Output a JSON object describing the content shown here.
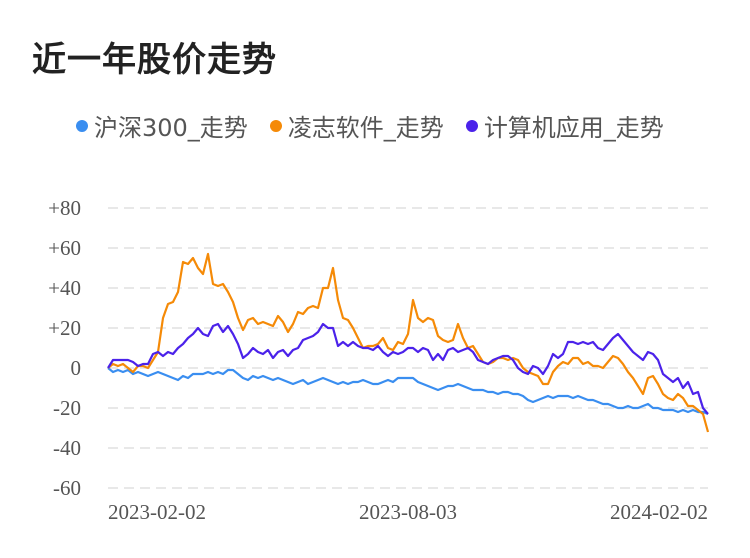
{
  "title": "近一年股价走势",
  "chart_data": {
    "type": "line",
    "title": "近一年股价走势",
    "x_ticks": [
      "2023-02-02",
      "2023-08-03",
      "2024-02-02"
    ],
    "y_ticks": [
      "+80",
      "+60",
      "+40",
      "+20",
      "0",
      "-20",
      "-40",
      "-60"
    ],
    "ylim": [
      -60,
      80
    ],
    "grid": true,
    "legend_position": "top",
    "series": [
      {
        "name": "沪深300_走势",
        "color": "#3a8ef0",
        "values": [
          0,
          -2,
          -1,
          -2,
          -1,
          -3,
          -2,
          -3,
          -4,
          -3,
          -2,
          -3,
          -4,
          -5,
          -6,
          -4,
          -5,
          -3,
          -3,
          -3,
          -2,
          -3,
          -2,
          -3,
          -1,
          -1,
          -3,
          -5,
          -6,
          -4,
          -5,
          -4,
          -5,
          -6,
          -5,
          -6,
          -7,
          -8,
          -7,
          -6,
          -8,
          -7,
          -6,
          -5,
          -6,
          -7,
          -8,
          -7,
          -8,
          -7,
          -7,
          -6,
          -7,
          -8,
          -8,
          -7,
          -6,
          -7,
          -5,
          -5,
          -5,
          -5,
          -7,
          -8,
          -9,
          -10,
          -11,
          -10,
          -9,
          -9,
          -8,
          -9,
          -10,
          -11,
          -11,
          -11,
          -12,
          -12,
          -13,
          -12,
          -12,
          -13,
          -13,
          -14,
          -16,
          -17,
          -16,
          -15,
          -14,
          -15,
          -14,
          -14,
          -14,
          -15,
          -14,
          -15,
          -16,
          -16,
          -17,
          -18,
          -18,
          -19,
          -20,
          -20,
          -19,
          -20,
          -20,
          -19,
          -18,
          -20,
          -20,
          -21,
          -21,
          -21,
          -22,
          -21,
          -22,
          -21,
          -22,
          -22,
          -23
        ]
      },
      {
        "name": "凌志软件_走势",
        "color": "#f58a07",
        "values": [
          0,
          2,
          1,
          2,
          0,
          -2,
          1,
          1,
          0,
          4,
          8,
          25,
          32,
          33,
          38,
          53,
          52,
          55,
          50,
          47,
          57,
          42,
          41,
          42,
          38,
          33,
          25,
          19,
          24,
          25,
          22,
          23,
          22,
          21,
          26,
          23,
          18,
          22,
          28,
          27,
          30,
          31,
          30,
          40,
          40,
          50,
          34,
          25,
          24,
          20,
          15,
          10,
          11,
          11,
          12,
          15,
          10,
          9,
          13,
          12,
          17,
          34,
          25,
          23,
          25,
          24,
          16,
          14,
          13,
          14,
          22,
          15,
          10,
          11,
          7,
          3,
          2,
          3,
          5,
          5,
          4,
          5,
          4,
          0,
          -2,
          -3,
          -4,
          -8,
          -8,
          -2,
          1,
          3,
          2,
          5,
          5,
          2,
          3,
          1,
          1,
          0,
          3,
          6,
          5,
          2,
          -2,
          -5,
          -9,
          -13,
          -5,
          -4,
          -8,
          -13,
          -15,
          -16,
          -13,
          -15,
          -19,
          -19,
          -21,
          -23,
          -32
        ]
      },
      {
        "name": "计算机应用_走势",
        "color": "#4b22ea",
        "values": [
          0,
          4,
          4,
          4,
          4,
          3,
          1,
          2,
          2,
          7,
          8,
          6,
          8,
          7,
          10,
          12,
          15,
          17,
          20,
          17,
          16,
          21,
          22,
          18,
          21,
          17,
          12,
          5,
          7,
          10,
          8,
          7,
          9,
          5,
          8,
          9,
          6,
          9,
          10,
          14,
          15,
          16,
          18,
          22,
          20,
          20,
          11,
          13,
          11,
          13,
          11,
          10,
          10,
          9,
          11,
          8,
          6,
          8,
          7,
          8,
          10,
          10,
          8,
          10,
          9,
          4,
          7,
          4,
          9,
          10,
          8,
          9,
          10,
          8,
          4,
          3,
          2,
          4,
          5,
          6,
          6,
          4,
          0,
          -2,
          -3,
          1,
          0,
          -3,
          1,
          7,
          5,
          7,
          13,
          13,
          12,
          13,
          12,
          13,
          10,
          9,
          12,
          15,
          17,
          14,
          11,
          8,
          6,
          4,
          8,
          7,
          4,
          -3,
          -5,
          -7,
          -5,
          -10,
          -7,
          -13,
          -12,
          -20,
          -23
        ]
      }
    ]
  }
}
